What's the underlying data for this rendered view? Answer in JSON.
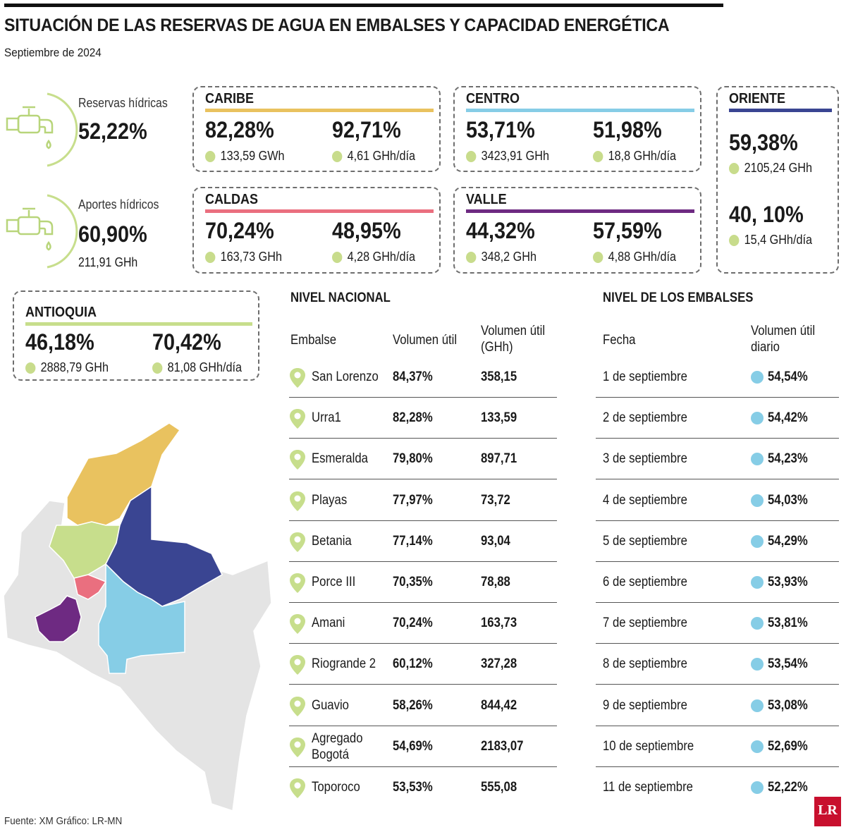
{
  "title": "SITUACIÓN DE LAS RESERVAS DE AGUA EN EMBALSES Y CAPACIDAD ENERGÉTICA",
  "subtitle": "Septiembre de 2024",
  "colors": {
    "caribe": "#e9c25f",
    "centro": "#86cde6",
    "oriente": "#3a4592",
    "caldas": "#ea6f7f",
    "valle": "#6e2a82",
    "antioquia": "#c7de8c",
    "point": "#c7de8c",
    "blue_point": "#86cde6",
    "map_other": "#e4e4e4"
  },
  "icons": {
    "reservas": "faucet-icon",
    "aportes": "faucet-icon",
    "embalse": "location-pin-icon"
  },
  "reservas": {
    "label": "Reservas hídricas",
    "value": "52,22%"
  },
  "aportes": {
    "label": "Aportes hídricos",
    "value": "60,90%",
    "sub": "211,91 GHh"
  },
  "regions": {
    "caribe": {
      "name": "CARIBE",
      "pct1": "82,28%",
      "note1": "133,59 GWh",
      "pct2": "92,71%",
      "note2": "4,61 GHh/día"
    },
    "centro": {
      "name": "CENTRO",
      "pct1": "53,71%",
      "note1": "3423,91 GHh",
      "pct2": "51,98%",
      "note2": "18,8 GHh/día"
    },
    "oriente": {
      "name": "ORIENTE",
      "pct1": "59,38%",
      "note1": "2105,24 GHh",
      "pct2": "40, 10%",
      "note2": "15,4 GHh/día"
    },
    "caldas": {
      "name": "CALDAS",
      "pct1": "70,24%",
      "note1": "163,73 GHh",
      "pct2": "48,95%",
      "note2": "4,28 GHh/día"
    },
    "valle": {
      "name": "VALLE",
      "pct1": "44,32%",
      "note1": "348,2 GHh",
      "pct2": "57,59%",
      "note2": "4,88 GHh/día"
    },
    "antioquia": {
      "name": "ANTIOQUIA",
      "pct1": "46,18%",
      "note1": "2888,79 GHh",
      "pct2": "70,42%",
      "note2": "81,08 GHh/día"
    }
  },
  "nacional": {
    "title": "NIVEL NACIONAL",
    "headers": {
      "embalse": "Embalse",
      "util": "Volumen útil",
      "gwh": "Volumen útil\n(GHh)"
    }
  },
  "embalses_title": "NIVEL DE LOS EMBALSES",
  "embalses_headers": {
    "fecha": "Fecha",
    "diario": "Volumen útil\ndiario"
  },
  "chart_data": [
    {
      "type": "table",
      "title": "NIVEL NACIONAL",
      "columns": [
        "Embalse",
        "Volumen útil",
        "Volumen útil (GHh)"
      ],
      "rows": [
        {
          "embalse": "San Lorenzo",
          "util": "84,37%",
          "gwh": "358,15"
        },
        {
          "embalse": "Urra1",
          "util": "82,28%",
          "gwh": "133,59"
        },
        {
          "embalse": "Esmeralda",
          "util": "79,80%",
          "gwh": "897,71"
        },
        {
          "embalse": "Playas",
          "util": "77,97%",
          "gwh": "73,72"
        },
        {
          "embalse": "Betania",
          "util": "77,14%",
          "gwh": "93,04"
        },
        {
          "embalse": "Porce III",
          "util": "70,35%",
          "gwh": "78,88"
        },
        {
          "embalse": "Amani",
          "util": "70,24%",
          "gwh": "163,73"
        },
        {
          "embalse": "Riogrande 2",
          "util": "60,12%",
          "gwh": "327,28"
        },
        {
          "embalse": "Guavio",
          "util": "58,26%",
          "gwh": "844,42"
        },
        {
          "embalse": "Agregado\nBogotá",
          "util": "54,69%",
          "gwh": "2183,07"
        },
        {
          "embalse": "Toporoco",
          "util": "53,53%",
          "gwh": "555,08"
        }
      ]
    },
    {
      "type": "table",
      "title": "NIVEL DE LOS EMBALSES",
      "columns": [
        "Fecha",
        "Volumen útil diario"
      ],
      "rows": [
        {
          "fecha": "1 de septiembre",
          "valor": "54,54%"
        },
        {
          "fecha": "2 de septiembre",
          "valor": "54,42%"
        },
        {
          "fecha": "3 de septiembre",
          "valor": "54,23%"
        },
        {
          "fecha": "4 de septiembre",
          "valor": "54,03%"
        },
        {
          "fecha": "5 de septiembre",
          "valor": "54,29%"
        },
        {
          "fecha": "6 de septiembre",
          "valor": "53,93%"
        },
        {
          "fecha": "7 de septiembre",
          "valor": "53,81%"
        },
        {
          "fecha": "8 de septiembre",
          "valor": "53,54%"
        },
        {
          "fecha": "9 de septiembre",
          "valor": "53,08%"
        },
        {
          "fecha": "10 de septiembre",
          "valor": "52,69%"
        },
        {
          "fecha": "11 de septiembre",
          "valor": "52,22%"
        }
      ]
    }
  ],
  "footer": {
    "source": "Fuente: XM   Gráfico: LR-MN"
  },
  "logo": "LR"
}
